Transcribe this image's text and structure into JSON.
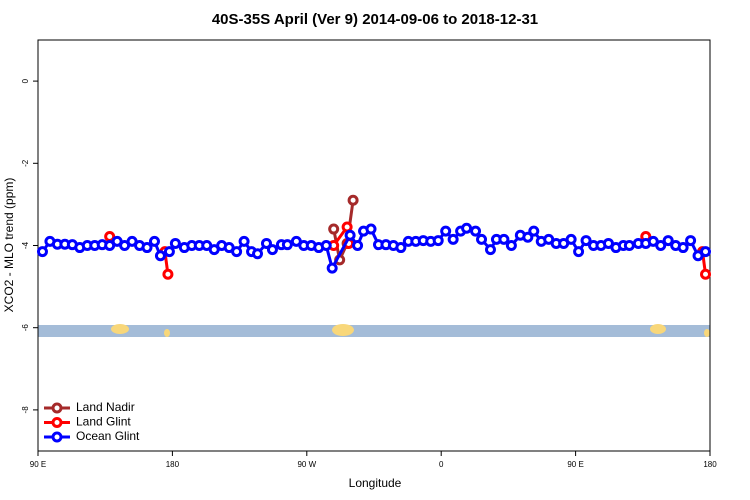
{
  "chart_data": {
    "type": "line",
    "title": "40S-35S April (Ver 9)   2014-09-06 to 2018-12-31",
    "x_label": "Longitude",
    "y_label": "XCO2 - MLO trend (ppm)",
    "xlim": [
      90,
      540
    ],
    "xticks": [
      {
        "value": 90,
        "label": "90 E"
      },
      {
        "value": 180,
        "label": "180"
      },
      {
        "value": 270,
        "label": "90 W"
      },
      {
        "value": 360,
        "label": "0"
      },
      {
        "value": 450,
        "label": "90 E"
      },
      {
        "value": 540,
        "label": "180"
      }
    ],
    "ylim": [
      -9,
      1
    ],
    "yticks": [
      0,
      -2,
      -4,
      -6,
      -8
    ],
    "legend": "bottom-left",
    "series": [
      {
        "name": "Land Nadir",
        "color": "#a52a2a",
        "x": [
          288,
          292,
          297,
          301
        ],
        "values": [
          -3.6,
          -4.35,
          -3.95,
          -2.9
        ]
      },
      {
        "name": "Land Glint",
        "color": "#ff0000",
        "x": [
          138,
          null,
          175,
          177,
          null,
          288,
          297,
          298,
          null,
          497,
          null,
          535,
          537
        ],
        "values": [
          -3.78,
          null,
          -4.15,
          -4.7,
          null,
          -4.0,
          -3.55,
          -3.95,
          null,
          -3.78,
          null,
          -4.15,
          -4.7
        ]
      },
      {
        "name": "Ocean Glint",
        "color": "#0000ff",
        "x": [
          93,
          98,
          103,
          108,
          113,
          118,
          123,
          128,
          133,
          138,
          143,
          148,
          153,
          158,
          163,
          168,
          172,
          178,
          182,
          188,
          193,
          198,
          203,
          208,
          213,
          218,
          223,
          228,
          233,
          237,
          243,
          247,
          253,
          257,
          263,
          268,
          273,
          278,
          283,
          287,
          299,
          304,
          308,
          313,
          318,
          323,
          328,
          333,
          338,
          343,
          348,
          353,
          358,
          363,
          368,
          373,
          377,
          383,
          387,
          393,
          397,
          402,
          407,
          413,
          418,
          422,
          427,
          432,
          437,
          442,
          447,
          452,
          457,
          462,
          467,
          472,
          477,
          482,
          486,
          492,
          497,
          502,
          507,
          512,
          517,
          522,
          527,
          532,
          537
        ],
        "values": [
          -4.15,
          -3.9,
          -3.97,
          -3.97,
          -3.98,
          -4.05,
          -4.0,
          -4.0,
          -3.98,
          -4.0,
          -3.9,
          -4.0,
          -3.9,
          -4.0,
          -4.05,
          -3.9,
          -4.25,
          -4.15,
          -3.95,
          -4.05,
          -4.0,
          -4.0,
          -4.0,
          -4.1,
          -4.0,
          -4.05,
          -4.15,
          -3.9,
          -4.15,
          -4.2,
          -3.95,
          -4.1,
          -3.98,
          -3.98,
          -3.9,
          -4.0,
          -4.0,
          -4.05,
          -4.0,
          -4.55,
          -3.75,
          -4.0,
          -3.65,
          -3.6,
          -3.98,
          -3.98,
          -4.0,
          -4.05,
          -3.9,
          -3.9,
          -3.88,
          -3.9,
          -3.88,
          -3.65,
          -3.85,
          -3.65,
          -3.58,
          -3.65,
          -3.85,
          -4.1,
          -3.85,
          -3.85,
          -4.0,
          -3.75,
          -3.8,
          -3.65,
          -3.9,
          -3.85,
          -3.95,
          -3.95,
          -3.85,
          -4.15,
          -3.88,
          -4.0,
          -4.0,
          -3.95,
          -4.05,
          -4.0,
          -4.0,
          -3.95,
          -3.95,
          -3.9,
          -4.0,
          -3.88,
          -4.0,
          -4.05,
          -3.88,
          -4.25,
          -4.15
        ]
      }
    ]
  }
}
